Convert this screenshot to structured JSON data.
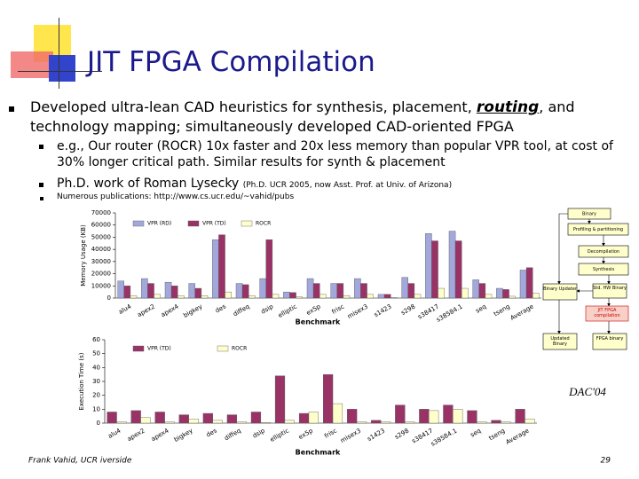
{
  "title": "JIT FPGA Compilation",
  "main_bullet": {
    "before": "Developed ultra-lean CAD heuristics for synthesis, placement, ",
    "emphasis": "routing",
    "after": ", and technology mapping; simultaneously developed CAD-oriented FPGA"
  },
  "sub_bullets": [
    {
      "text": "e.g., Our router (ROCR) 10x faster and 20x less memory than popular VPR tool, at cost of 30% longer critical path. Similar results for synth & placement"
    },
    {
      "text": "Ph.D. work of Roman Lysecky",
      "note": "(Ph.D. UCR 2005, now Asst. Prof. at Univ. of Arizona)"
    },
    {
      "text": "Numerous publications: http://www.cs.ucr.edu/~vahid/pubs"
    }
  ],
  "chart_data": [
    {
      "type": "bar",
      "ylabel": "Memory Usage (KB)",
      "xlabel": "Benchmark",
      "categories": [
        "alu4",
        "apex2",
        "apex4",
        "bigkey",
        "des",
        "diffeq",
        "dsip",
        "elliptic",
        "ex5p",
        "frisc",
        "misex3",
        "s1423",
        "s298",
        "s38417",
        "s38584.1",
        "seq",
        "tseng",
        "Average"
      ],
      "series": [
        {
          "name": "VPR (RD)",
          "color": "#a3a8dc",
          "values": [
            14000,
            16000,
            13000,
            12000,
            48000,
            12000,
            16000,
            5000,
            16000,
            12000,
            16000,
            3000,
            17000,
            53000,
            55000,
            15000,
            8000,
            23000
          ]
        },
        {
          "name": "VPR (TD)",
          "color": "#993366",
          "values": [
            10000,
            12000,
            10000,
            8000,
            52000,
            11000,
            48000,
            4500,
            12000,
            12000,
            12000,
            3000,
            12000,
            47000,
            47000,
            12000,
            7000,
            25000
          ]
        },
        {
          "name": "ROCR",
          "color": "#ffffcc",
          "values": [
            2000,
            3000,
            2000,
            2000,
            5000,
            2000,
            3000,
            1000,
            3000,
            2000,
            3000,
            500,
            3000,
            8000,
            8000,
            3000,
            1500,
            4000
          ]
        }
      ],
      "ylim": [
        0,
        70000
      ],
      "yticks": [
        0,
        10000,
        20000,
        30000,
        40000,
        50000,
        60000,
        70000
      ],
      "grid": false
    },
    {
      "type": "bar",
      "ylabel": "Execution Time (s)",
      "xlabel": "Benchmark",
      "categories": [
        "alu4",
        "apex2",
        "apex4",
        "bigkey",
        "des",
        "diffeq",
        "dsip",
        "elliptic",
        "ex5p",
        "frisc",
        "misex3",
        "s1423",
        "s298",
        "s38417",
        "s38584.1",
        "seq",
        "tseng",
        "Average"
      ],
      "series": [
        {
          "name": "VPR (TD)",
          "color": "#993366",
          "values": [
            8,
            9,
            8,
            6,
            7,
            6,
            8,
            34,
            7,
            35,
            10,
            2,
            13,
            10,
            13,
            9,
            2,
            10
          ]
        },
        {
          "name": "ROCR",
          "color": "#ffffcc",
          "values": [
            1,
            4,
            1,
            3,
            2,
            1,
            0.5,
            2,
            8,
            14,
            1,
            1,
            1,
            9,
            10,
            1,
            1,
            3
          ]
        }
      ],
      "ylim": [
        0,
        60
      ],
      "yticks": [
        0,
        10,
        20,
        30,
        40,
        50,
        60
      ],
      "grid": false
    }
  ],
  "flow": {
    "binary": "Binary",
    "profiling": "Profiling & partitioning",
    "decompilation": "Decompilation",
    "synthesis": "Synthesis",
    "updater": "Binary Updater",
    "std_hw": "Std. HW Binary",
    "jit": "JIT FPGA compilation",
    "updated": "Updated Binary",
    "fpga": "FPGA binary"
  },
  "citation": "DAC'04",
  "footer": {
    "author": "Frank Vahid, UCR iverside",
    "page": "29"
  }
}
